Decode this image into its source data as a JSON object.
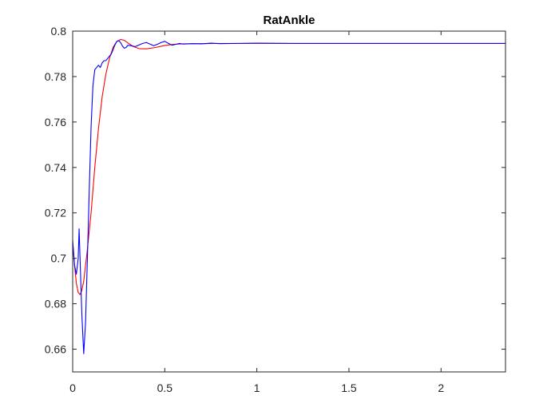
{
  "chart_data": {
    "type": "line",
    "title": "RatAnkle",
    "xlabel": "",
    "ylabel": "",
    "xlim": [
      0,
      2.35
    ],
    "ylim": [
      0.65,
      0.8
    ],
    "x_ticks": [
      0,
      0.5,
      1,
      1.5,
      2
    ],
    "x_tick_labels": [
      "0",
      "0.5",
      "1",
      "1.5",
      "2"
    ],
    "y_ticks": [
      0.66,
      0.68,
      0.7,
      0.72,
      0.74,
      0.76,
      0.78,
      0.8
    ],
    "y_tick_labels": [
      "0.66",
      "0.68",
      "0.7",
      "0.72",
      "0.74",
      "0.76",
      "0.78",
      "0.8"
    ],
    "grid": false,
    "box": true,
    "series": [
      {
        "color": "#ff0000",
        "x": [
          0,
          0.01,
          0.02,
          0.03,
          0.04,
          0.05,
          0.06,
          0.08,
          0.1,
          0.12,
          0.14,
          0.16,
          0.18,
          0.2,
          0.22,
          0.24,
          0.26,
          0.28,
          0.3,
          0.33,
          0.36,
          0.4,
          0.45,
          0.5,
          0.55,
          0.6,
          0.7,
          0.8,
          1.0,
          1.5,
          2.0,
          2.35
        ],
        "y": [
          0.707,
          0.697,
          0.689,
          0.685,
          0.684,
          0.686,
          0.69,
          0.704,
          0.72,
          0.74,
          0.757,
          0.771,
          0.781,
          0.788,
          0.793,
          0.7955,
          0.7963,
          0.796,
          0.7948,
          0.7932,
          0.7923,
          0.7922,
          0.7928,
          0.7937,
          0.7942,
          0.7944,
          0.7945,
          0.7946,
          0.7946,
          0.7946,
          0.7946,
          0.7946
        ]
      },
      {
        "color": "#0000ff",
        "x": [
          0,
          0.01,
          0.02,
          0.03,
          0.035,
          0.04,
          0.05,
          0.06,
          0.07,
          0.08,
          0.09,
          0.1,
          0.11,
          0.12,
          0.13,
          0.14,
          0.15,
          0.16,
          0.17,
          0.18,
          0.19,
          0.2,
          0.21,
          0.22,
          0.23,
          0.24,
          0.25,
          0.26,
          0.27,
          0.28,
          0.29,
          0.3,
          0.32,
          0.34,
          0.36,
          0.38,
          0.4,
          0.42,
          0.44,
          0.46,
          0.48,
          0.5,
          0.52,
          0.54,
          0.56,
          0.58,
          0.6,
          0.65,
          0.7,
          0.75,
          0.8,
          0.9,
          1.0,
          1.2,
          1.5,
          2.0,
          2.35
        ],
        "y": [
          0.708,
          0.697,
          0.693,
          0.7,
          0.713,
          0.7,
          0.675,
          0.658,
          0.672,
          0.7,
          0.73,
          0.758,
          0.776,
          0.783,
          0.784,
          0.785,
          0.784,
          0.786,
          0.787,
          0.787,
          0.788,
          0.789,
          0.79,
          0.792,
          0.794,
          0.7955,
          0.7958,
          0.795,
          0.7935,
          0.7925,
          0.7928,
          0.7938,
          0.7935,
          0.7932,
          0.7939,
          0.7946,
          0.795,
          0.7943,
          0.7936,
          0.7942,
          0.795,
          0.7955,
          0.7946,
          0.7938,
          0.7942,
          0.7946,
          0.7943,
          0.7945,
          0.7944,
          0.7947,
          0.7945,
          0.7946,
          0.7947,
          0.7946,
          0.7946,
          0.7946,
          0.7946
        ]
      }
    ]
  }
}
